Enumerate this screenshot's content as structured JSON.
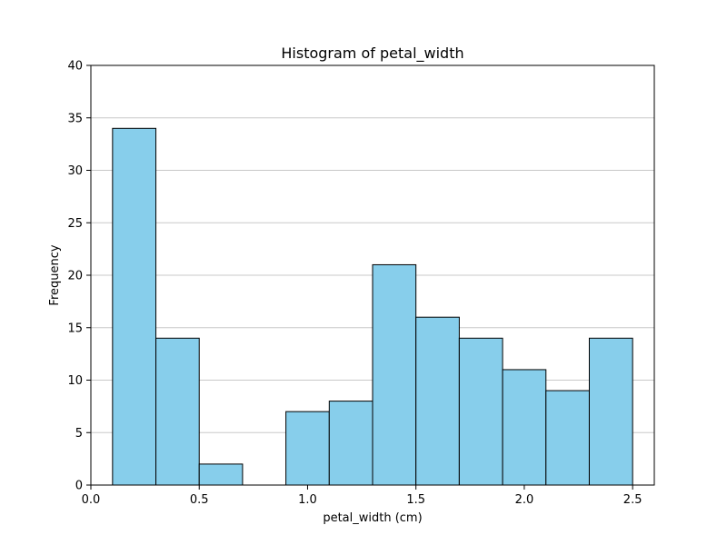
{
  "chart_data": {
    "type": "bar",
    "title": "Histogram of petal_width",
    "xlabel": "petal_width (cm)",
    "ylabel": "Frequency",
    "xlim": [
      0.0,
      2.6
    ],
    "ylim": [
      0,
      40
    ],
    "x_ticks": [
      0.0,
      0.5,
      1.0,
      1.5,
      2.0,
      2.5
    ],
    "x_tick_labels": [
      "0.0",
      "0.5",
      "1.0",
      "1.5",
      "2.0",
      "2.5"
    ],
    "y_ticks": [
      0,
      5,
      10,
      15,
      20,
      25,
      30,
      35,
      40
    ],
    "y_tick_labels": [
      "0",
      "5",
      "10",
      "15",
      "20",
      "25",
      "30",
      "35",
      "40"
    ],
    "grid": "horizontal",
    "bin_edges": [
      0.1,
      0.3,
      0.5,
      0.7,
      0.9,
      1.1,
      1.3,
      1.5,
      1.7,
      1.9,
      2.1,
      2.3,
      2.5
    ],
    "values": [
      34,
      14,
      2,
      0,
      7,
      8,
      21,
      16,
      14,
      11,
      9,
      14
    ],
    "colors": {
      "bar_fill": "#87ceeb",
      "bar_edge": "#000000",
      "grid": "#c8c8c8",
      "axis": "#000000"
    }
  }
}
